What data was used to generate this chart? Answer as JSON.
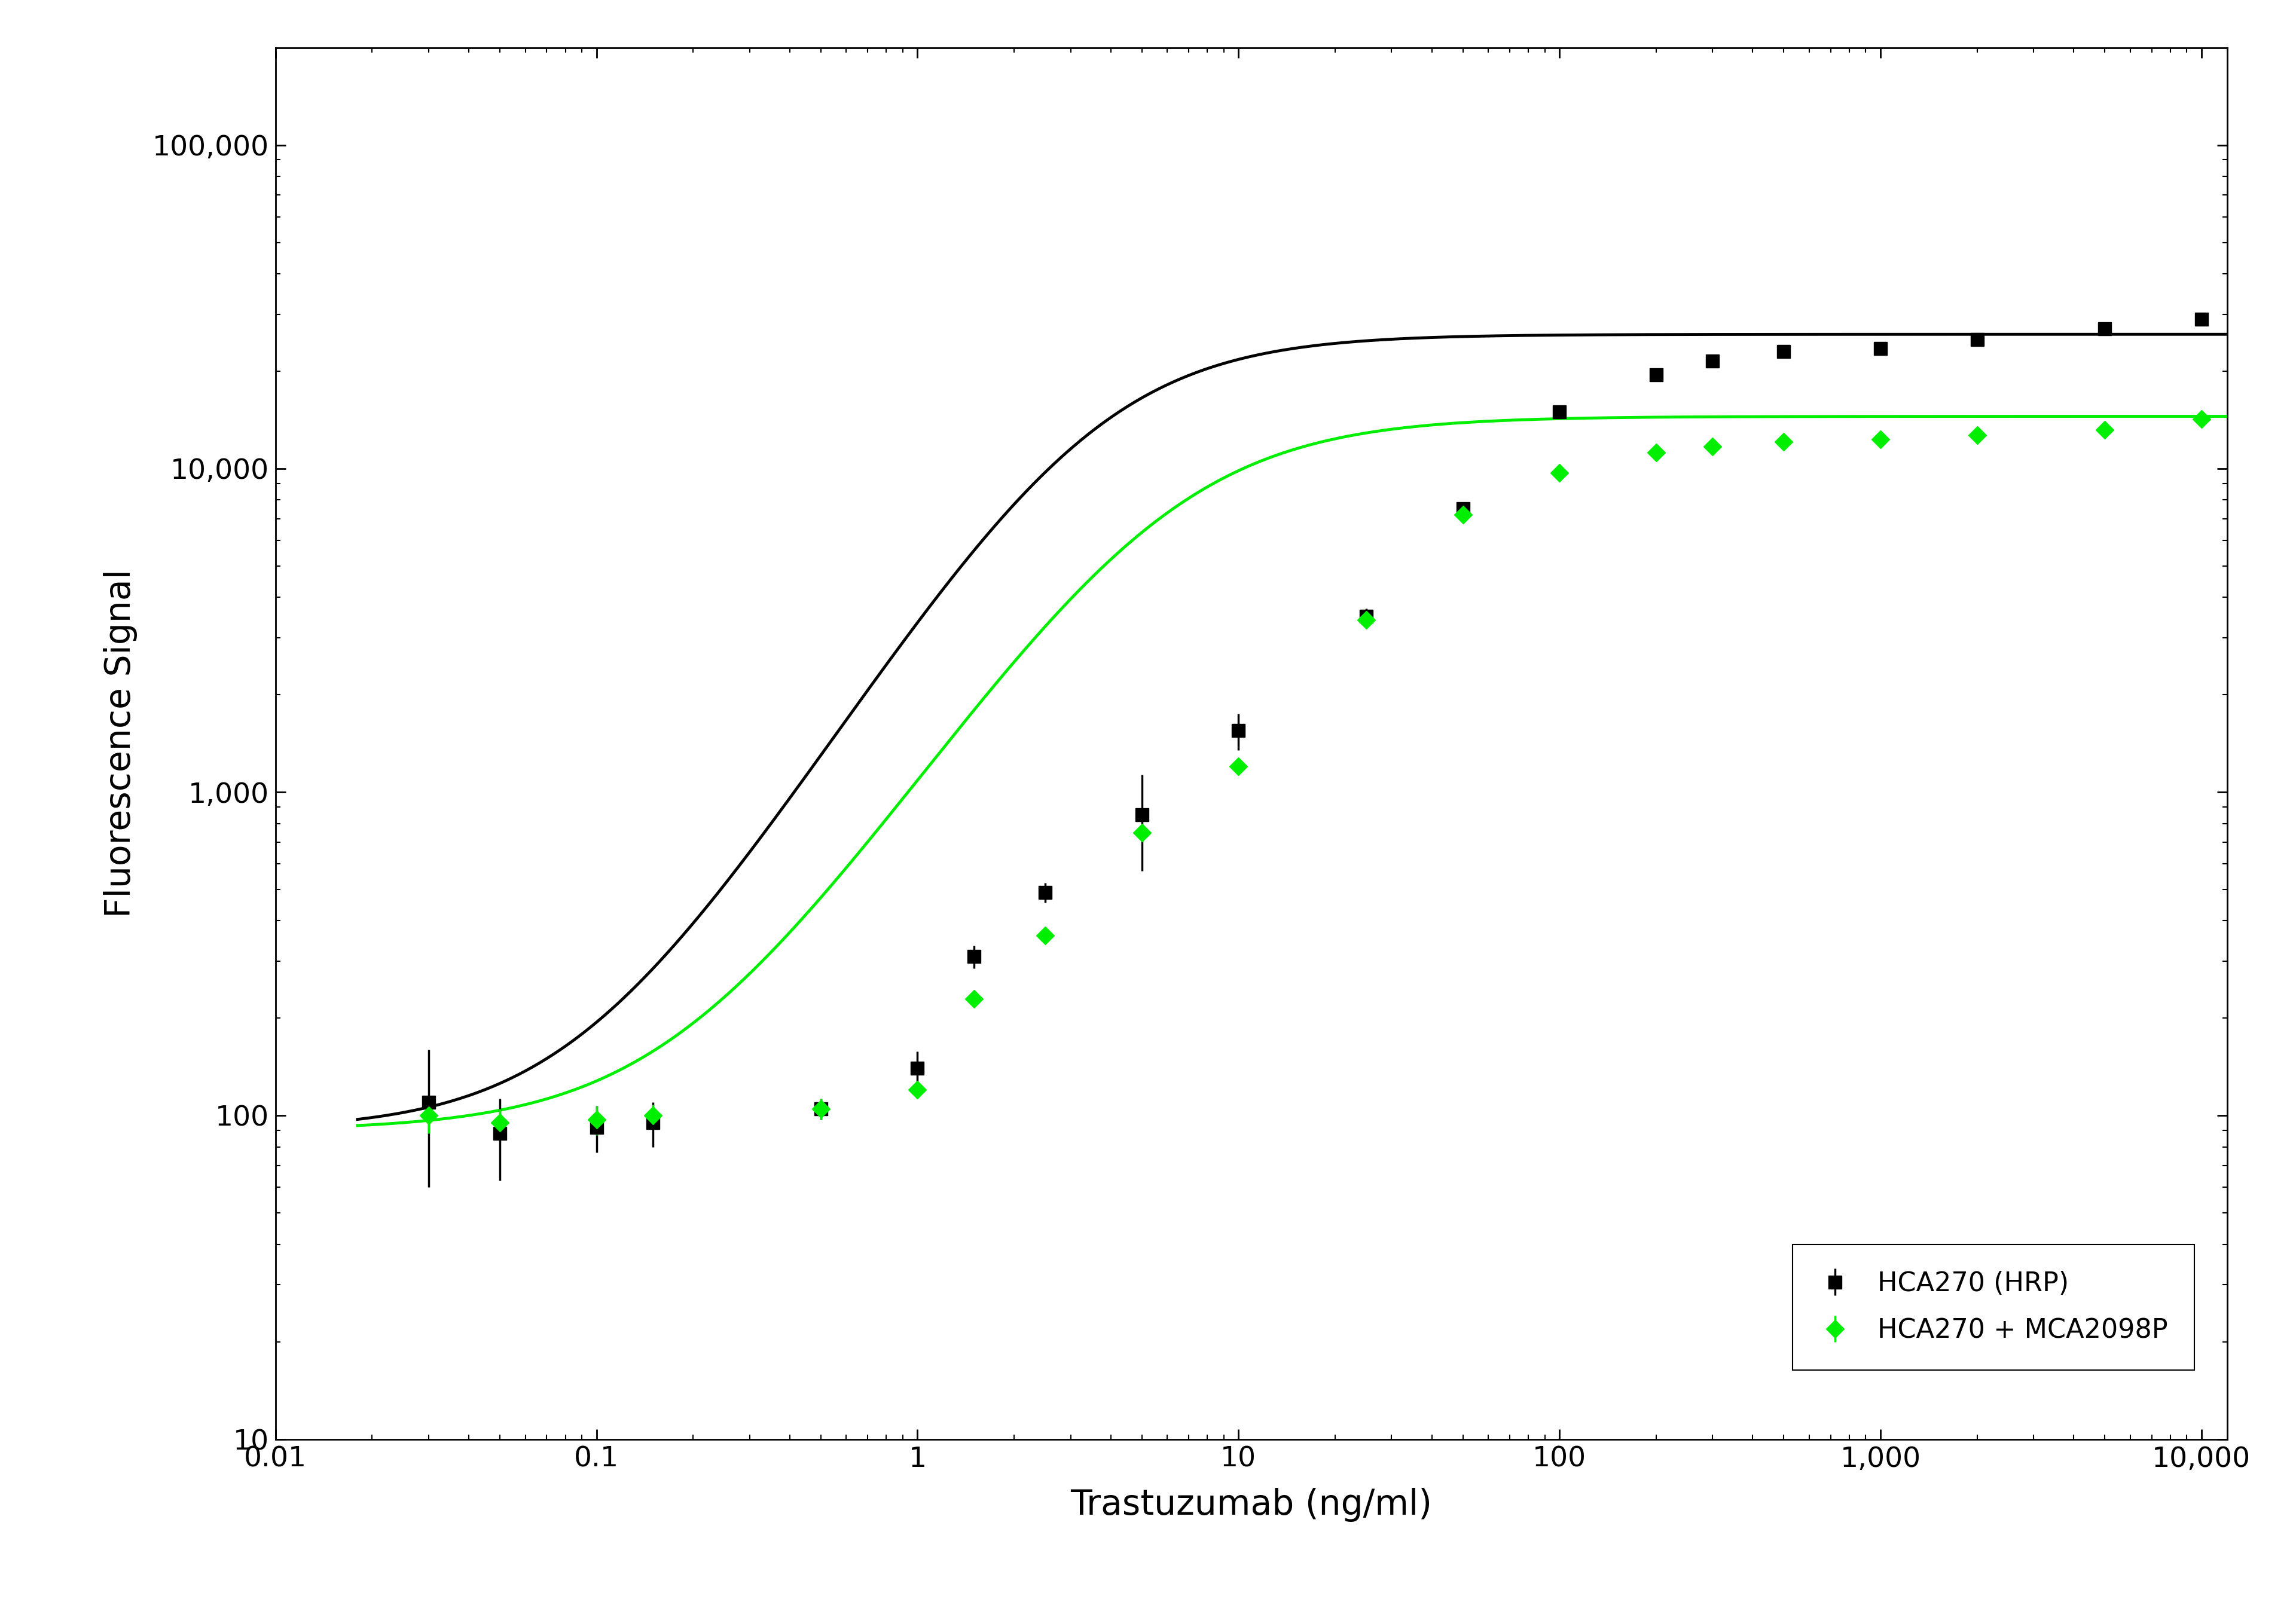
{
  "xlabel": "Trastuzumab (ng/ml)",
  "ylabel": "Fluorescence Signal",
  "background_color": "#ffffff",
  "series1_name": "HCA270 (HRP)",
  "series1_color": "#000000",
  "series2_name": "HCA270 + MCA2098P",
  "series2_color": "#00ee00",
  "series1_x": [
    0.03,
    0.05,
    0.1,
    0.15,
    0.5,
    1.0,
    1.5,
    2.5,
    5.0,
    10.0,
    25.0,
    50.0,
    100.0,
    200.0,
    300.0,
    500.0,
    1000.0,
    2000.0,
    5000.0,
    10000.0
  ],
  "series1_y": [
    110,
    88,
    92,
    95,
    105,
    140,
    310,
    490,
    850,
    1550,
    3500,
    7500,
    15000,
    19500,
    21500,
    23000,
    23500,
    25000,
    27000,
    29000
  ],
  "series1_yerr": [
    50,
    25,
    15,
    15,
    8,
    18,
    25,
    35,
    280,
    200,
    200,
    200,
    300,
    300,
    200,
    200,
    200,
    200,
    200,
    200
  ],
  "series2_x": [
    0.03,
    0.05,
    0.1,
    0.15,
    0.5,
    1.0,
    1.5,
    2.5,
    5.0,
    10.0,
    25.0,
    50.0,
    100.0,
    200.0,
    300.0,
    500.0,
    1000.0,
    2000.0,
    5000.0,
    10000.0
  ],
  "series2_y": [
    100,
    95,
    97,
    100,
    105,
    120,
    230,
    360,
    750,
    1200,
    3400,
    7200,
    9700,
    11200,
    11700,
    12100,
    12300,
    12700,
    13200,
    14200
  ],
  "series2_yerr": [
    12,
    10,
    10,
    8,
    8,
    7,
    12,
    18,
    45,
    70,
    180,
    180,
    180,
    130,
    100,
    100,
    100,
    100,
    100,
    100
  ],
  "s1_4pl": [
    90,
    26000,
    3.5,
    1.55
  ],
  "s2_4pl": [
    90,
    14500,
    6.0,
    1.45
  ],
  "axis_fontsize": 42,
  "tick_fontsize": 34,
  "legend_fontsize": 32,
  "line_width": 3.5,
  "marker_size": 16,
  "marker_size_s2": 15
}
